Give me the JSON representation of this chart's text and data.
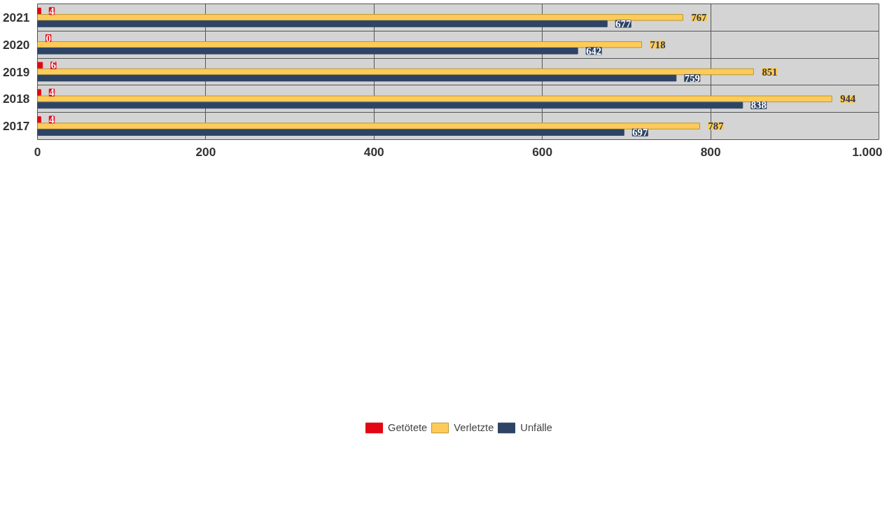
{
  "chart_data": {
    "type": "bar",
    "orientation": "horizontal",
    "categories": [
      "2021",
      "2020",
      "2019",
      "2018",
      "2017"
    ],
    "series": [
      {
        "name": "Getötete",
        "color": "#e30613",
        "values": [
          4,
          0,
          6,
          4,
          4
        ]
      },
      {
        "name": "Verletzte",
        "color": "#fecb5b",
        "values": [
          767,
          718,
          851,
          944,
          787
        ]
      },
      {
        "name": "Unfälle",
        "color": "#2e4466",
        "values": [
          677,
          642,
          759,
          838,
          697
        ]
      }
    ],
    "xlim": [
      0,
      1000
    ],
    "xticks": [
      0,
      200,
      400,
      600,
      800,
      {
        "value": 1000,
        "label": "1.000"
      }
    ],
    "grid": true,
    "legend": "bottom",
    "data_labels": true
  }
}
